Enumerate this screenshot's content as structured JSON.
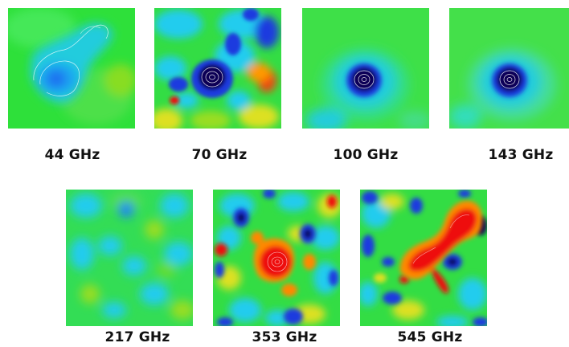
{
  "panels": [
    {
      "label": "44 GHz"
    },
    {
      "label": "70 GHz"
    },
    {
      "label": "100 GHz"
    },
    {
      "label": "143 GHz"
    },
    {
      "label": "217 GHz"
    },
    {
      "label": "353 GHz"
    },
    {
      "label": "545 GHz"
    }
  ],
  "colors": {
    "green": "#22dd33",
    "cyan": "#22ccee",
    "blue": "#1a3adf",
    "dark_blue": "#0a0055",
    "yellow": "#dde020",
    "orange": "#ff8800",
    "red": "#ee1111"
  }
}
